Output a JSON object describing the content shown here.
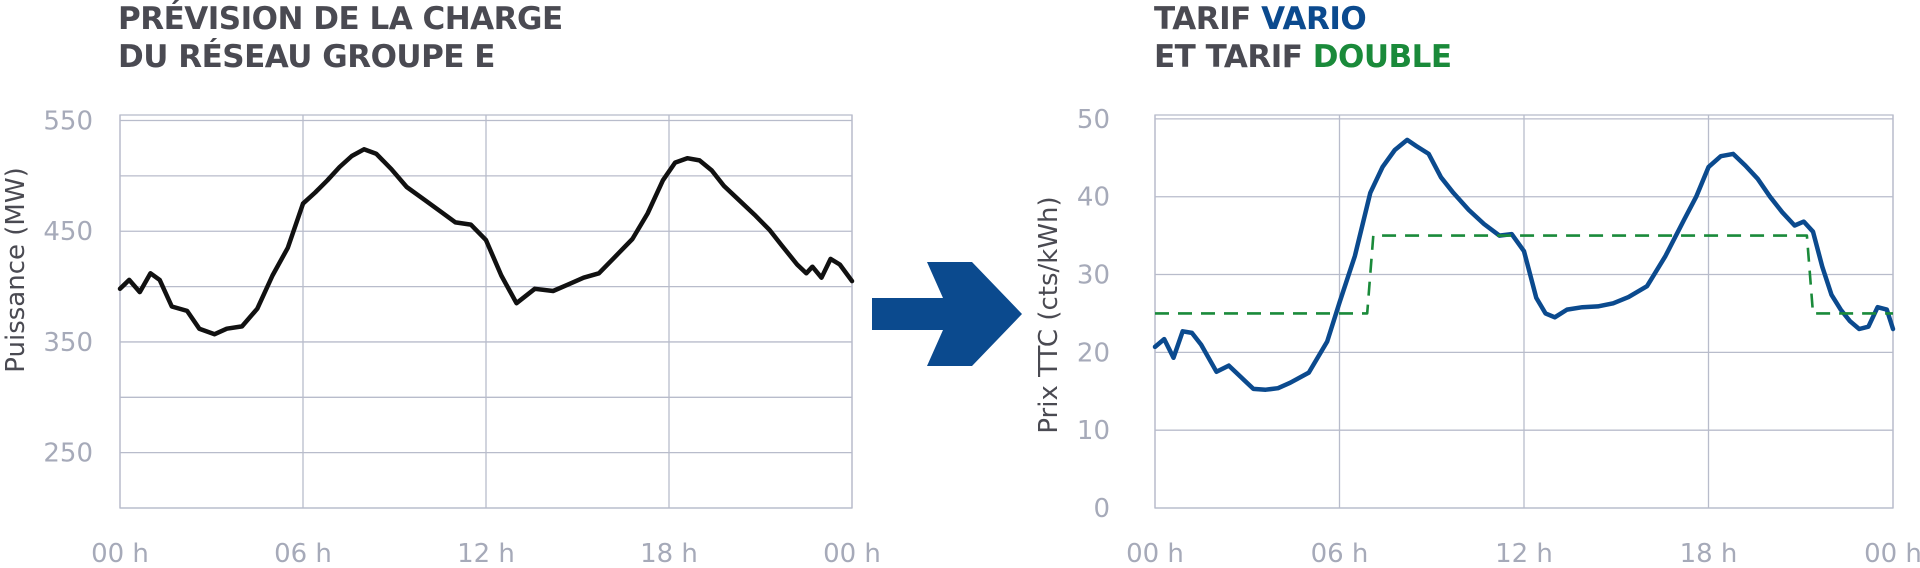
{
  "left_title": {
    "line1": "PRÉVISION DE LA CHARGE",
    "line2": "DU RÉSEAU GROUPE E"
  },
  "right_title": {
    "line1_prefix": "TARIF ",
    "line1_highlight": "VARIO",
    "line2_prefix": "ET TARIF ",
    "line2_highlight": "DOUBLE"
  },
  "colors": {
    "vario": "#0b4a8e",
    "double": "#1a8a3a",
    "load": "#111111",
    "grid": "#b8bccb",
    "ticks": "#a6aab9",
    "arrow": "#0b4a8e",
    "title": "#4a4a52"
  },
  "icons": {
    "arrow": "arrow-right-icon"
  },
  "chart_data": [
    {
      "type": "line",
      "ylabel": "Puissance (MW)",
      "xlabel": "",
      "x_ticks": [
        "00 h",
        "06 h",
        "12 h",
        "18 h",
        "00 h"
      ],
      "y_ticks": [
        "250",
        "350",
        "450",
        "550"
      ],
      "xlim": [
        0,
        24
      ],
      "ylim": [
        200,
        555
      ],
      "grid": true,
      "series": [
        {
          "x": [
            0,
            0.3,
            0.65,
            1.0,
            1.3,
            1.7,
            2.2,
            2.6,
            3.1,
            3.5,
            4.0,
            4.5,
            5.0,
            5.5,
            6.0,
            6.4,
            6.8,
            7.2,
            7.6,
            8.0,
            8.4,
            8.9,
            9.4,
            10.0,
            10.5,
            11.0,
            11.5,
            12.0,
            12.5,
            13.0,
            13.6,
            14.2,
            14.7,
            15.2,
            15.7,
            16.2,
            16.8,
            17.3,
            17.8,
            18.2,
            18.6,
            19.0,
            19.4,
            19.8,
            20.3,
            20.8,
            21.3,
            21.7,
            22.2,
            22.5,
            22.7,
            23.0,
            23.3,
            23.6,
            24.0
          ],
          "y": [
            398,
            406,
            395,
            412,
            406,
            382,
            378,
            362,
            357,
            362,
            364,
            380,
            410,
            435,
            475,
            485,
            496,
            508,
            518,
            524,
            520,
            506,
            490,
            478,
            468,
            458,
            456,
            442,
            410,
            385,
            398,
            396,
            402,
            408,
            412,
            426,
            443,
            466,
            496,
            512,
            516,
            514,
            505,
            491,
            478,
            465,
            451,
            437,
            420,
            412,
            418,
            408,
            425,
            420,
            405
          ]
        }
      ]
    },
    {
      "type": "line",
      "ylabel": "Prix TTC (cts/kWh)",
      "xlabel": "",
      "x_ticks": [
        "00 h",
        "06 h",
        "12 h",
        "18 h",
        "00 h"
      ],
      "y_ticks": [
        "0",
        "10",
        "20",
        "30",
        "40",
        "50"
      ],
      "xlim": [
        0,
        24
      ],
      "ylim": [
        0,
        50.5
      ],
      "grid": true,
      "series": [
        {
          "x": [
            0,
            0.3,
            0.6,
            0.9,
            1.2,
            1.5,
            2.0,
            2.4,
            2.8,
            3.2,
            3.6,
            4.0,
            4.4,
            5.0,
            5.6,
            6.0,
            6.5,
            7.0,
            7.4,
            7.8,
            8.2,
            8.5,
            8.9,
            9.3,
            9.7,
            10.2,
            10.7,
            11.2,
            11.6,
            12.0,
            12.4,
            12.7,
            13.0,
            13.4,
            13.9,
            14.4,
            14.9,
            15.4,
            16.0,
            16.6,
            17.2,
            17.6,
            18.0,
            18.4,
            18.8,
            19.2,
            19.6,
            20.0,
            20.4,
            20.8,
            21.1,
            21.4,
            21.7,
            22.0,
            22.3,
            22.6,
            22.9,
            23.2,
            23.5,
            23.8,
            24.0
          ],
          "y": [
            20.7,
            21.7,
            19.3,
            22.7,
            22.5,
            21.0,
            17.5,
            18.3,
            16.8,
            15.3,
            15.2,
            15.4,
            16.1,
            17.4,
            21.4,
            26.4,
            32.4,
            40.5,
            43.8,
            46.0,
            47.3,
            46.5,
            45.5,
            42.5,
            40.5,
            38.3,
            36.5,
            35.0,
            35.2,
            33.0,
            27.0,
            25.0,
            24.5,
            25.5,
            25.8,
            25.9,
            26.3,
            27.1,
            28.5,
            32.4,
            37.0,
            40.0,
            43.8,
            45.2,
            45.5,
            44.0,
            42.3,
            40.0,
            38.0,
            36.3,
            36.8,
            35.5,
            31.0,
            27.4,
            25.5,
            24.0,
            23.0,
            23.3,
            25.8,
            25.5,
            23.0
          ]
        },
        {
          "x": [
            0,
            6.9,
            7.1,
            21.2,
            21.4,
            24.0
          ],
          "y": [
            25,
            25,
            35,
            35,
            25,
            25
          ]
        }
      ]
    }
  ]
}
